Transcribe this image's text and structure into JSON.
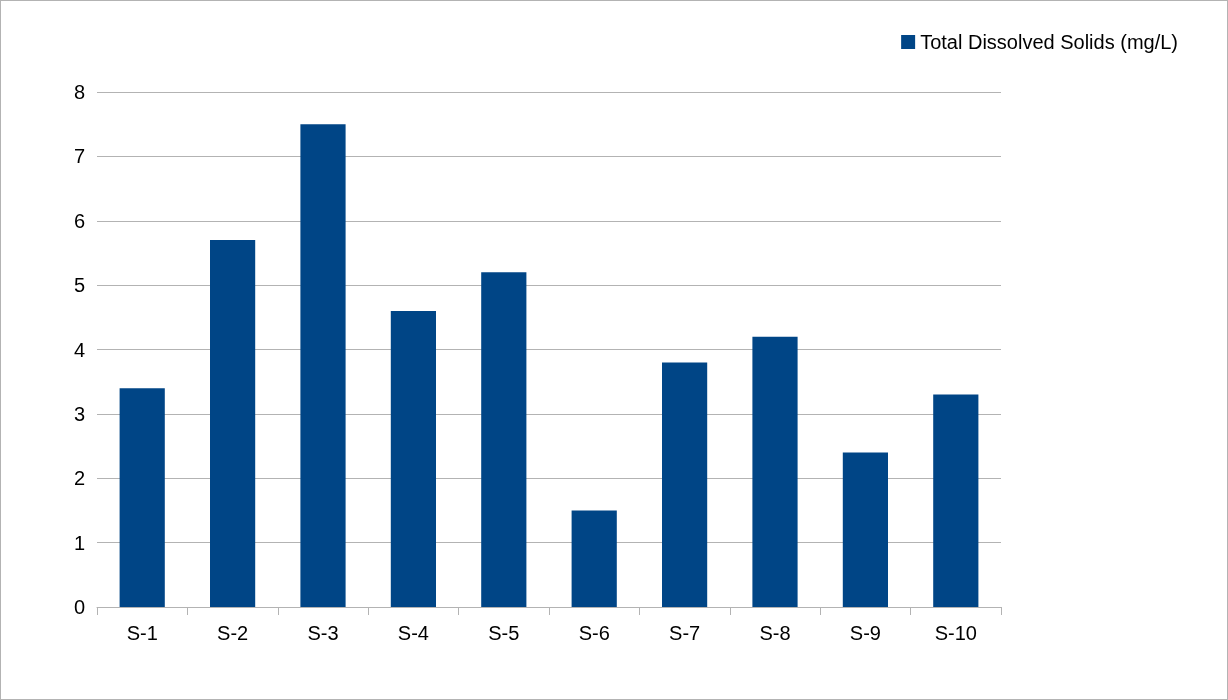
{
  "chart_data": {
    "type": "bar",
    "categories": [
      "S-1",
      "S-2",
      "S-3",
      "S-4",
      "S-5",
      "S-6",
      "S-7",
      "S-8",
      "S-9",
      "S-10"
    ],
    "series": [
      {
        "name": "Total Dissolved Solids (mg/L)",
        "color": "#004586",
        "values": [
          3.4,
          5.7,
          7.5,
          4.6,
          5.2,
          1.5,
          3.8,
          4.2,
          2.4,
          3.3
        ]
      }
    ],
    "ylim": [
      0,
      8
    ],
    "yticks": [
      0,
      1,
      2,
      3,
      4,
      5,
      6,
      7,
      8
    ],
    "grid": "y",
    "legend": "top right"
  }
}
